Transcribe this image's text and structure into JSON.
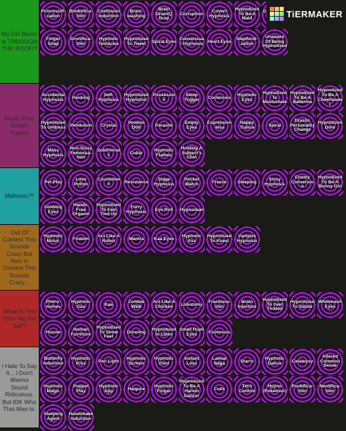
{
  "logo": {
    "text": "TiERMAKER"
  },
  "colors": {
    "logo_squares": [
      "#ff7f7f",
      "#ffbf7f",
      "#ffdf7f",
      "#ffff7f",
      "#bfff7f",
      "#7fff7f",
      "#7fffff",
      "#7fbfff",
      "#bf7fff"
    ]
  },
  "tiers": [
    {
      "label": "My Girl Boner Is THROUGH THE ROOF!!!",
      "color": "#1a9a1a",
      "items": [
        "Princessifi-cation",
        "Bimbofica-tion",
        "Confusion Induction",
        "Brain-washing",
        "Brain DrainIQ Drop",
        "Corruption",
        "Covert Hypnosis",
        "Hypnotized To Be A Maid",
        "Dollification",
        "Hypnotized To Have Sex",
        "Ttinosis",
        "Finger Snap",
        "Dronifica-tion",
        "Hypnotic Tentacles",
        "Hypnotized To Tweet",
        "Spiral Eyes",
        "Consensual Hypnosis",
        "Heart Eyes",
        "Stepfordi-zation",
        "Unaware Of Being Hypnotized"
      ]
    },
    {
      "label": "Manic Pixie Dream Trance",
      "color": "#8a2c6a",
      "items": [
        "Accidental Hypnosis",
        "Hacking",
        "Self-Hypnosis",
        "Hypnotized Hypnotist",
        "Possession",
        "Sleep Trigger",
        "Cocknosis",
        "Hypnotic Eyes",
        "Hypnotized To Masturbate",
        "Hypnotized To Be A Ballerina",
        "Hypnotized To Be A Cheerleader",
        "Hypnotized To Undress",
        "Pendulum",
        "Crystal",
        "Voodoo Doll",
        "Parasite",
        "Empty Eyes",
        "Expression-less",
        "Happy Trance",
        "Spiral",
        "Drastic Personality Change",
        "Hypnotized Dom",
        "Mass Hypnosis",
        "Non-Sissy Feminisa-tion",
        "Subliminals",
        "Collar",
        "Hypnotic Flames",
        "Holding A Subject's Chin"
      ]
    },
    {
      "label": "Midnosis™",
      "color": "#20a0a0",
      "items": [
        "Pet Play",
        "Love Potion",
        "Countdown",
        "Resistance",
        "Stage Hypnosis",
        "Pocket Watch",
        "Freeze",
        "Sleeping",
        "Sissy Hypnosis",
        "Enemy Conversion",
        "Hypnotized To Be A Bunny Girl",
        "Glowing Eyes",
        "Hands-Free Orgasm",
        "Hypnotized To Feel Tied Up",
        "Furry Hypnosis",
        "Eye Roll",
        "Hypnoduel"
      ]
    },
    {
      "label": "Out Of Context This Sounds Crazy But Also In Context This Sounds Crazy...",
      "color": "#a06a1e",
      "items": [
        "Hypnotic Music",
        "Findom",
        "Act Like A Robot",
        "Mantra",
        "Kaa Eyes",
        "Hypnotic Ass",
        "Hypnotized To Kneel",
        "Vampire Hypnosis"
      ]
    },
    {
      "label": "What Is The Tone Tag For \"Jail\"?",
      "color": "#b02828",
      "items": [
        "Phero-mones",
        "Hypnotic Gas",
        "Kaa",
        "Zombie Walk",
        "Act Like A Chicken",
        "Lobotomy",
        "Fractiona-tion",
        "Brain Injection",
        "Hypnotized To Feel Tickled",
        "Hypnotized To Salute",
        "Whitewash Eyes",
        "Hucow",
        "Human Furniture",
        "Hypnotized To Show Feet",
        "Drooling",
        "Hypnotized In Latex",
        "Small Pupil Eyes",
        "Footnosis"
      ]
    },
    {
      "label": "I Hate To Say It... I Don't Wanna Sound Ridiculous, But IDK Who That Man Is.",
      "color": "#9a9a9a",
      "items": [
        "Butterfly Induction",
        "Hypnotic Kiss",
        "Pen Light",
        "Hypnotic Screen",
        "Hypnotic Visor",
        "Instant Loss",
        "Lamial Naga",
        "Starro",
        "Hypnotic Dance",
        "Catalepsy",
        "Altered Common Sense",
        "Hypnotic Magic",
        "Puppet Play",
        "Hypnotic App",
        "Haigure",
        "Hypnotic Finger",
        "Hypnotized To Be A Harem Dancer",
        "Coils",
        "Tech Control",
        "Hypno (Pokemon)",
        "Punkifica-tion",
        "Nerdifica-tion",
        "Sleeping Agent",
        "Handshake Induction"
      ]
    }
  ]
}
